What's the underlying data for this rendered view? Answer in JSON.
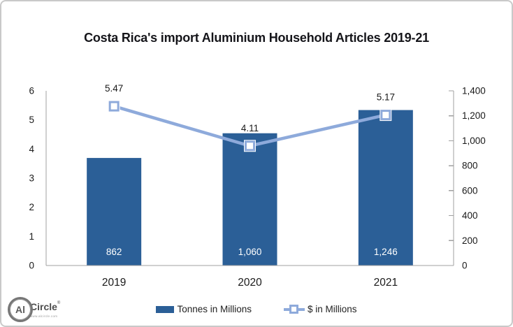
{
  "title": "Costa Rica's import Aluminium Household Articles 2019-21",
  "chart_data": {
    "type": "combo",
    "title": "Costa Rica's import Aluminium Household Articles 2019-21",
    "categories": [
      "2019",
      "2020",
      "2021"
    ],
    "series": [
      {
        "name": "Tonnes in Millions",
        "type": "bar",
        "axis": "right",
        "values": [
          862,
          1060,
          1246
        ],
        "data_labels": [
          "862",
          "1,060",
          "1,246"
        ],
        "color": "#2B5F97",
        "label_color": "#FFFFFF"
      },
      {
        "name": "$ in Millions",
        "type": "line",
        "axis": "left",
        "values": [
          5.47,
          4.11,
          5.17
        ],
        "data_labels": [
          "5.47",
          "4.11",
          "5.17"
        ],
        "color": "#8EAADB",
        "marker": "square",
        "marker_fill": "#FFFFFF"
      }
    ],
    "left_axis": {
      "min": 0,
      "max": 6,
      "step": 1,
      "tick_labels": [
        "0",
        "1",
        "2",
        "3",
        "4",
        "5",
        "6"
      ]
    },
    "right_axis": {
      "min": 0,
      "max": 1400,
      "step": 200,
      "tick_labels": [
        "0",
        "200",
        "400",
        "600",
        "800",
        "1,000",
        "1,200",
        "1,400"
      ]
    },
    "grid": false,
    "legend_position": "bottom",
    "axis_color": "#A0A0A0",
    "text_color": "#1A1A1A"
  },
  "logo": {
    "circle_text": "Al",
    "name": "Circle",
    "mark": "®",
    "url": "www.alcircle.com"
  }
}
